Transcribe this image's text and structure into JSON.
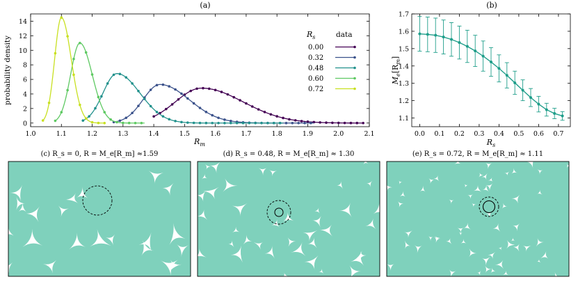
{
  "panels": {
    "a": {
      "label": "(a)",
      "ylabel": "probability density",
      "xlabel": "R",
      "xlabel_sub": "m",
      "legend": {
        "col1": "R",
        "col1_sub": "s",
        "col2": "data"
      }
    },
    "b": {
      "label": "(b)",
      "ylabel": "M",
      "ylabel_sub": "e",
      "ylabel_rest": "[R",
      "ylabel_rest_sub": "m",
      "ylabel_end": "]",
      "xlabel": "R",
      "xlabel_sub": "s"
    },
    "c": {
      "caption": "(c) R_s = 0, R = M_e[R_m] ≈1.59",
      "r_inner": 0.0,
      "r_outer": 1.59
    },
    "d": {
      "caption": "(d) R_s = 0.48, R = M_e[R_m] ≈ 1.30",
      "r_inner": 0.48,
      "r_outer": 1.3
    },
    "e": {
      "caption": "(e) R_s = 0.72, R = M_e[R_m] ≈ 1.11",
      "r_inner": 0.72,
      "r_outer": 1.11
    }
  },
  "colors": {
    "s000": "#440154",
    "s032": "#3b528b",
    "s048": "#21918c",
    "s060": "#5ec962",
    "s072": "#c8e020",
    "panel_fill": "#7fd1bc",
    "panel_b": "#1f9e8a"
  },
  "chart_data": [
    {
      "type": "line",
      "panel": "a",
      "xlim": [
        1.0,
        2.1
      ],
      "ylim": [
        -0.5,
        15
      ],
      "xticks": [
        "1.0",
        "1.1",
        "1.2",
        "1.3",
        "1.4",
        "1.5",
        "1.6",
        "1.7",
        "1.8",
        "1.9",
        "2.0",
        "2.1"
      ],
      "yticks": [
        "0",
        "2",
        "4",
        "6",
        "8",
        "10",
        "12",
        "14"
      ],
      "series": [
        {
          "name": "0.00",
          "color_key": "s000",
          "peak": 1.555,
          "sigma_l": 0.085,
          "sigma_r": 0.135,
          "height": 4.8,
          "x0": 1.4,
          "x1": 2.08
        },
        {
          "name": "0.32",
          "color_key": "s032",
          "peak": 1.42,
          "sigma_l": 0.055,
          "sigma_r": 0.095,
          "height": 5.3,
          "x0": 1.27,
          "x1": 1.92
        },
        {
          "name": "0.48",
          "color_key": "s048",
          "peak": 1.28,
          "sigma_l": 0.045,
          "sigma_r": 0.075,
          "height": 6.8,
          "x0": 1.17,
          "x1": 1.82
        },
        {
          "name": "0.60",
          "color_key": "s060",
          "peak": 1.16,
          "sigma_l": 0.03,
          "sigma_r": 0.04,
          "height": 11.0,
          "x0": 1.08,
          "x1": 1.37
        },
        {
          "name": "0.72",
          "color_key": "s072",
          "peak": 1.1,
          "sigma_l": 0.022,
          "sigma_r": 0.032,
          "height": 14.5,
          "x0": 1.04,
          "x1": 1.24
        }
      ]
    },
    {
      "type": "line",
      "panel": "b",
      "xlim": [
        -0.04,
        0.76
      ],
      "ylim": [
        1.05,
        1.7
      ],
      "xticks": [
        "0.0",
        "0.1",
        "0.2",
        "0.3",
        "0.4",
        "0.5",
        "0.6",
        "0.7"
      ],
      "yticks": [
        "1.1",
        "1.2",
        "1.3",
        "1.4",
        "1.5",
        "1.6",
        "1.7"
      ],
      "x": [
        0.0,
        0.04,
        0.08,
        0.12,
        0.16,
        0.2,
        0.24,
        0.28,
        0.32,
        0.36,
        0.4,
        0.44,
        0.48,
        0.52,
        0.56,
        0.6,
        0.64,
        0.68,
        0.72
      ],
      "y": [
        1.585,
        1.582,
        1.577,
        1.567,
        1.553,
        1.535,
        1.513,
        1.487,
        1.457,
        1.423,
        1.386,
        1.346,
        1.303,
        1.26,
        1.218,
        1.18,
        1.148,
        1.126,
        1.112
      ],
      "err": [
        0.1,
        0.1,
        0.099,
        0.098,
        0.097,
        0.095,
        0.093,
        0.09,
        0.087,
        0.083,
        0.078,
        0.073,
        0.067,
        0.06,
        0.052,
        0.045,
        0.037,
        0.03,
        0.025
      ]
    }
  ]
}
